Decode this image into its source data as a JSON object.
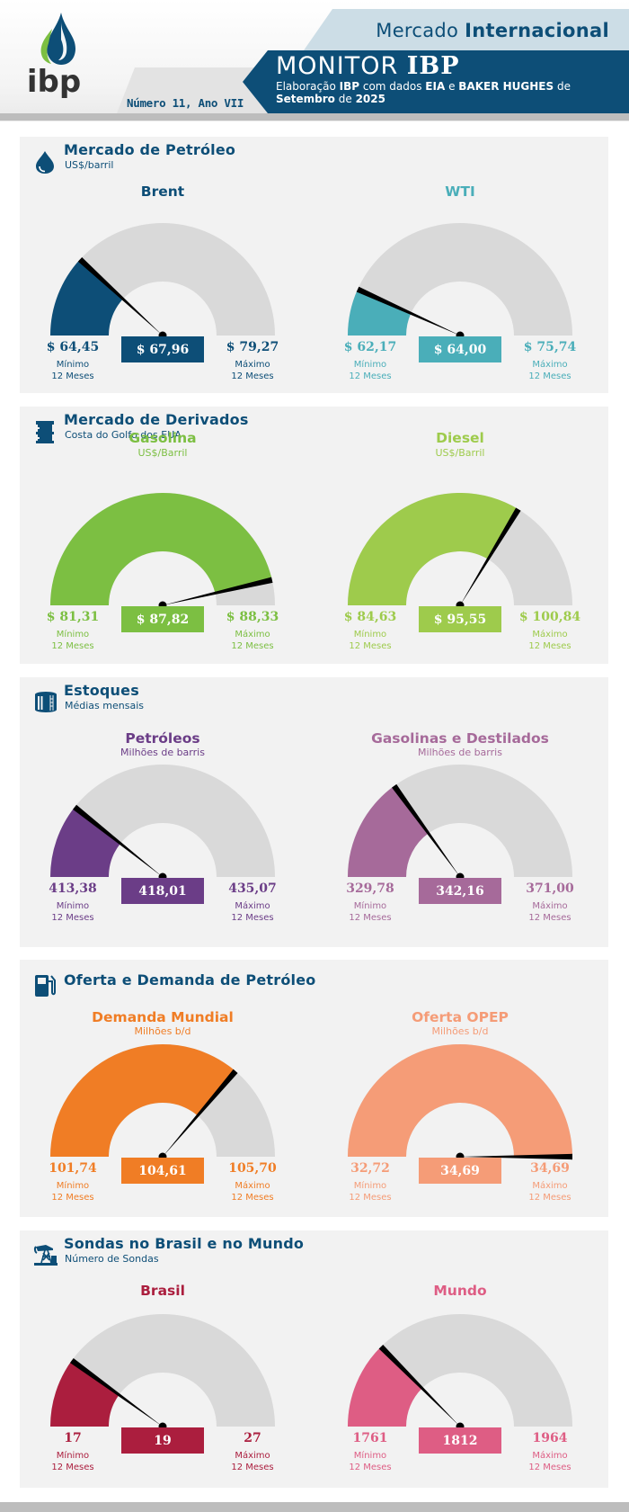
{
  "header": {
    "brand": "ibp",
    "market_title_regular": "Mercado ",
    "market_title_bold": "Internacional",
    "monitor_regular": "MONITOR ",
    "monitor_bold": "IBP",
    "sub_line1_parts": [
      "Elaboração ",
      "IBP",
      " com dados ",
      "EIA",
      " e ",
      "BAKER HUGHES",
      " de"
    ],
    "sub_line2_parts": [
      "Setembro",
      " de ",
      "2025"
    ],
    "issue": "Número 11, Ano VII",
    "colors": {
      "navy": "#0d4e77",
      "light_band": "#ccdde6",
      "gray_bar": "#bdbdbd"
    }
  },
  "labels": {
    "min_label_line1": "Mínimo",
    "max_label_line1": "Máximo",
    "period_line2": "12 Meses"
  },
  "sections": [
    {
      "id": "petroleo",
      "icon": "oil-drop-icon",
      "title": "Mercado de Petróleo",
      "subtitle": "US$/barril",
      "gauges": [
        {
          "id": "brent",
          "title": "Brent",
          "unit": "",
          "min": "$ 64,45",
          "value": "$ 67,96",
          "max": "$ 79,27",
          "color": "#0d4e77"
        },
        {
          "id": "wti",
          "title": "WTI",
          "unit": "",
          "min": "$ 62,17",
          "value": "$ 64,00",
          "max": "$ 75,74",
          "color": "#4aaeb9"
        }
      ]
    },
    {
      "id": "derivados",
      "icon": "barrel-icon",
      "title": "Mercado de Derivados",
      "subtitle": "Costa do Golfo dos EUA",
      "gauges": [
        {
          "id": "gasolina",
          "title": "Gasolina",
          "unit": "US$/Barril",
          "min": "$ 81,31",
          "value": "$ 87,82",
          "max": "$ 88,33",
          "color": "#7cbf42"
        },
        {
          "id": "diesel",
          "title": "Diesel",
          "unit": "US$/Barril",
          "min": "$ 84,63",
          "value": "$ 95,55",
          "max": "$ 100,84",
          "color": "#9ecb4c"
        }
      ]
    },
    {
      "id": "estoques",
      "icon": "storage-tank-icon",
      "title": "Estoques",
      "subtitle": "Médias mensais",
      "gauges": [
        {
          "id": "petroleos",
          "title": "Petróleos",
          "unit": "Milhões de barris",
          "min": "413,38",
          "value": "418,01",
          "max": "435,07",
          "color": "#6b3d87"
        },
        {
          "id": "gasolinas-destilados",
          "title": "Gasolinas e Destilados",
          "unit": "Milhões de barris",
          "min": "329,78",
          "value": "342,16",
          "max": "371,00",
          "color": "#a66a9a"
        }
      ]
    },
    {
      "id": "oferta-demanda",
      "icon": "fuel-pump-icon",
      "title": "Oferta e Demanda de Petróleo",
      "subtitle": "",
      "gauges": [
        {
          "id": "demanda-mundial",
          "title": "Demanda Mundial",
          "unit": "Milhões b/d",
          "min": "101,74",
          "value": "104,61",
          "max": "105,70",
          "color": "#f07d25"
        },
        {
          "id": "oferta-opep",
          "title": "Oferta OPEP",
          "unit": "Milhões b/d",
          "min": "32,72",
          "value": "34,69",
          "max": "34,69",
          "color": "#f59c77"
        }
      ]
    },
    {
      "id": "sondas",
      "icon": "oil-rig-icon",
      "title": "Sondas no Brasil e no Mundo",
      "subtitle": "Número de Sondas",
      "gauges": [
        {
          "id": "brasil",
          "title": "Brasil",
          "unit": "",
          "min": "17",
          "value": "19",
          "max": "27",
          "color": "#ab1e3e"
        },
        {
          "id": "mundo",
          "title": "Mundo",
          "unit": "",
          "min": "1761",
          "value": "1812",
          "max": "1964",
          "color": "#de5d84"
        }
      ]
    }
  ],
  "chart_data": [
    {
      "type": "gauge",
      "title": "Brent",
      "section": "Mercado de Petróleo",
      "unit": "US$/barril",
      "min": 64.45,
      "value": 67.96,
      "max": 79.27,
      "min_label": "Mínimo 12 Meses",
      "max_label": "Máximo 12 Meses"
    },
    {
      "type": "gauge",
      "title": "WTI",
      "section": "Mercado de Petróleo",
      "unit": "US$/barril",
      "min": 62.17,
      "value": 64.0,
      "max": 75.74,
      "min_label": "Mínimo 12 Meses",
      "max_label": "Máximo 12 Meses"
    },
    {
      "type": "gauge",
      "title": "Gasolina",
      "section": "Mercado de Derivados",
      "unit": "US$/Barril",
      "min": 81.31,
      "value": 87.82,
      "max": 88.33,
      "min_label": "Mínimo 12 Meses",
      "max_label": "Máximo 12 Meses"
    },
    {
      "type": "gauge",
      "title": "Diesel",
      "section": "Mercado de Derivados",
      "unit": "US$/Barril",
      "min": 84.63,
      "value": 95.55,
      "max": 100.84,
      "min_label": "Mínimo 12 Meses",
      "max_label": "Máximo 12 Meses"
    },
    {
      "type": "gauge",
      "title": "Petróleos",
      "section": "Estoques",
      "unit": "Milhões de barris",
      "min": 413.38,
      "value": 418.01,
      "max": 435.07,
      "min_label": "Mínimo 12 Meses",
      "max_label": "Máximo 12 Meses"
    },
    {
      "type": "gauge",
      "title": "Gasolinas e Destilados",
      "section": "Estoques",
      "unit": "Milhões de barris",
      "min": 329.78,
      "value": 342.16,
      "max": 371.0,
      "min_label": "Mínimo 12 Meses",
      "max_label": "Máximo 12 Meses"
    },
    {
      "type": "gauge",
      "title": "Demanda Mundial",
      "section": "Oferta e Demanda de Petróleo",
      "unit": "Milhões b/d",
      "min": 101.74,
      "value": 104.61,
      "max": 105.7,
      "min_label": "Mínimo 12 Meses",
      "max_label": "Máximo 12 Meses"
    },
    {
      "type": "gauge",
      "title": "Oferta OPEP",
      "section": "Oferta e Demanda de Petróleo",
      "unit": "Milhões b/d",
      "min": 32.72,
      "value": 34.69,
      "max": 34.69,
      "min_label": "Mínimo 12 Meses",
      "max_label": "Máximo 12 Meses"
    },
    {
      "type": "gauge",
      "title": "Brasil",
      "section": "Sondas no Brasil e no Mundo",
      "unit": "Número de Sondas",
      "min": 17,
      "value": 19,
      "max": 27,
      "min_label": "Mínimo 12 Meses",
      "max_label": "Máximo 12 Meses"
    },
    {
      "type": "gauge",
      "title": "Mundo",
      "section": "Sondas no Brasil e no Mundo",
      "unit": "Número de Sondas",
      "min": 1761,
      "value": 1812,
      "max": 1964,
      "min_label": "Mínimo 12 Meses",
      "max_label": "Máximo 12 Meses"
    }
  ]
}
